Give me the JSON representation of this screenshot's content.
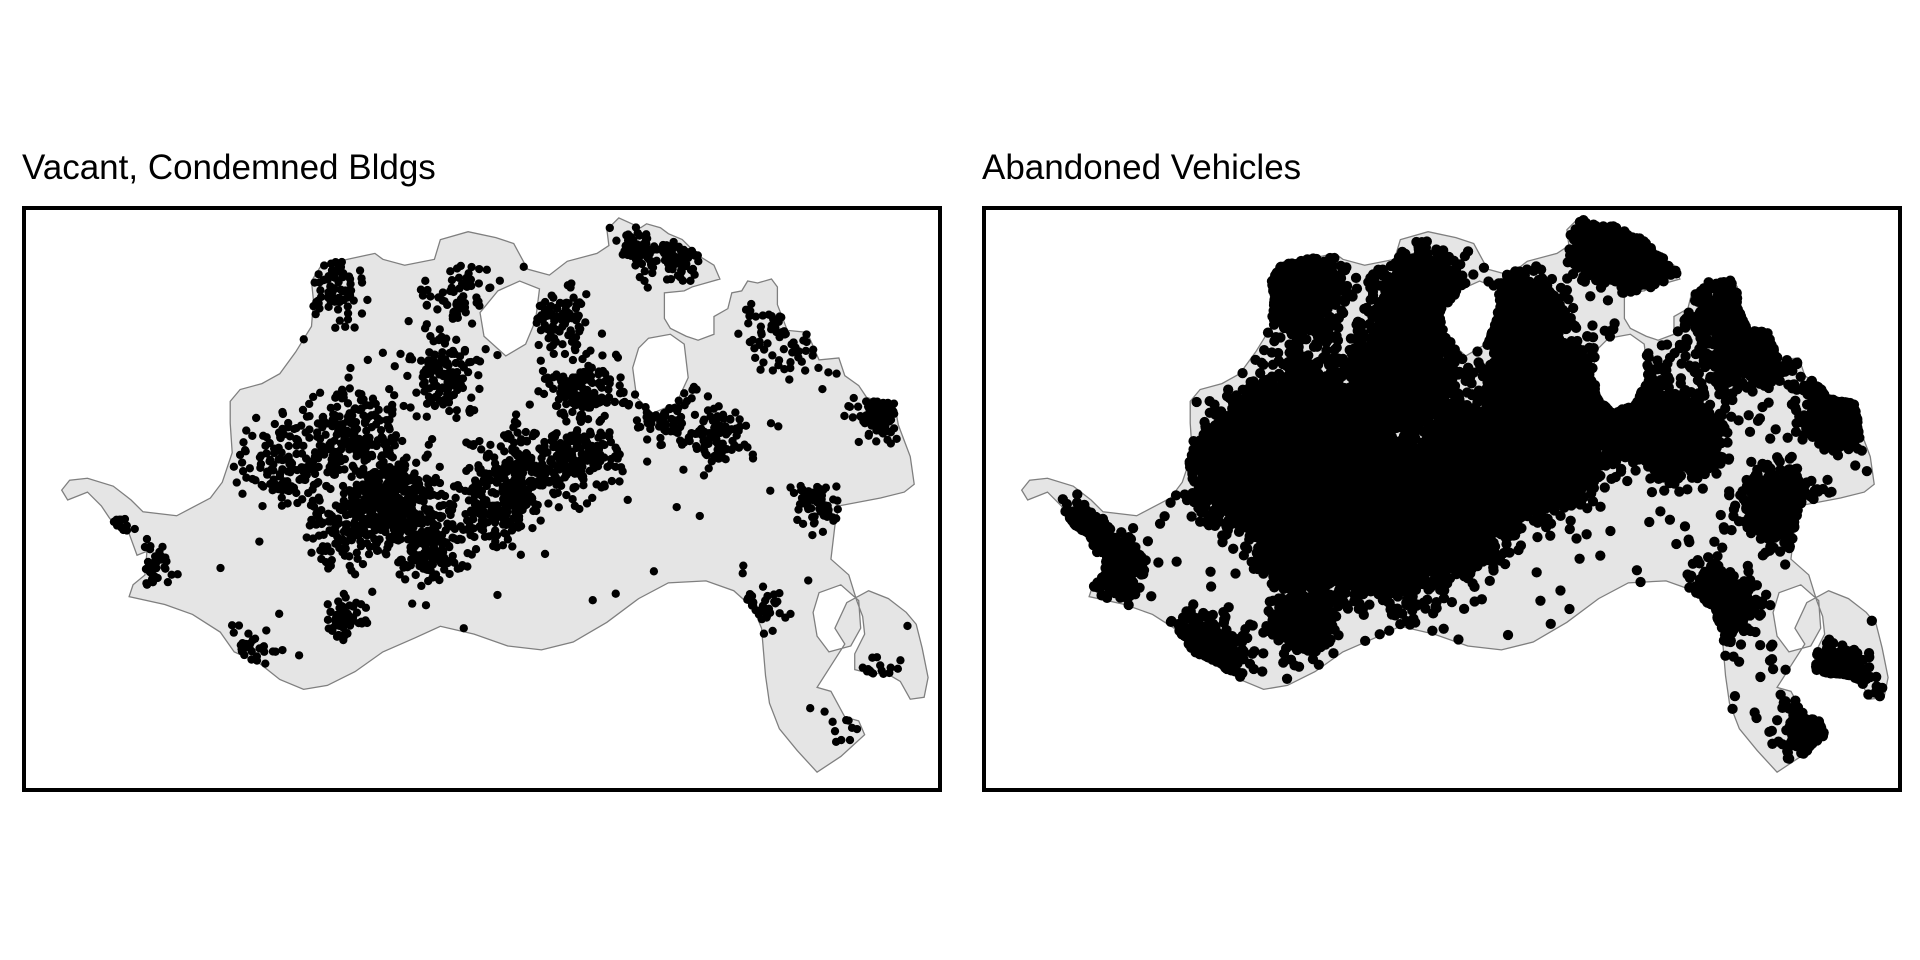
{
  "panels": [
    {
      "id": "vacant",
      "title": "Vacant, Condemned Bldgs",
      "density": "low"
    },
    {
      "id": "abandoned",
      "title": "Abandoned Vehicles",
      "density": "high"
    }
  ],
  "colors": {
    "land_fill": "#e5e5e5",
    "boundary_stroke": "#7f7f7f",
    "point_fill": "#000000",
    "frame_border": "#000000",
    "background": "#ffffff"
  },
  "icons": {
    "boundary": "city-boundary-polygon",
    "point": "filled-circle-marker"
  }
}
